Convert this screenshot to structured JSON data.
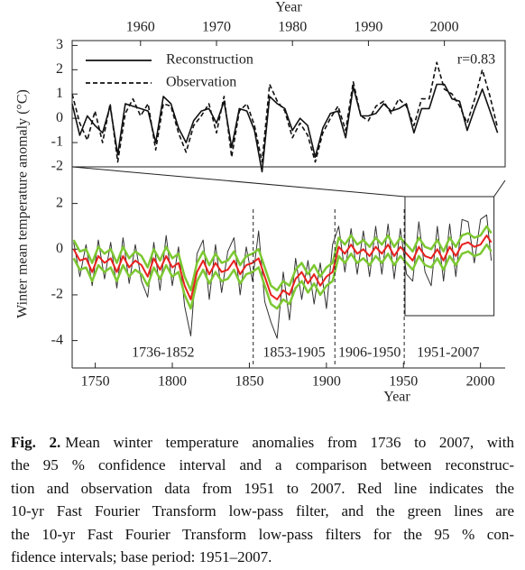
{
  "chart_data": [
    {
      "type": "line",
      "x_label": "Year",
      "y_label": "Winter mean temperature anomaly (°C)",
      "annotation": "r=0.83",
      "legend": "upper left",
      "x": [
        1951,
        1952,
        1953,
        1954,
        1955,
        1956,
        1957,
        1958,
        1959,
        1960,
        1961,
        1962,
        1963,
        1964,
        1965,
        1966,
        1967,
        1968,
        1969,
        1970,
        1971,
        1972,
        1973,
        1974,
        1975,
        1976,
        1977,
        1978,
        1979,
        1980,
        1981,
        1982,
        1983,
        1984,
        1985,
        1986,
        1987,
        1988,
        1989,
        1990,
        1991,
        1992,
        1993,
        1994,
        1995,
        1996,
        1997,
        1998,
        1999,
        2000,
        2001,
        2002,
        2003,
        2004,
        2005,
        2006,
        2007
      ],
      "xlim": [
        1951,
        2008
      ],
      "xticks": [
        1960,
        1970,
        1980,
        1990,
        2000
      ],
      "ylim": [
        -2,
        3.2
      ],
      "yticks": [
        3,
        2,
        1,
        0,
        -1,
        -2
      ],
      "series": [
        {
          "name": "Reconstruction",
          "color": "#111111",
          "line_style": "solid",
          "values": [
            0.6,
            -0.7,
            0.1,
            -0.3,
            -0.6,
            0.5,
            -1.5,
            0.6,
            0.5,
            0.4,
            0.3,
            -1.0,
            0.9,
            0.6,
            -0.4,
            -1.0,
            -0.1,
            0.3,
            0.4,
            -0.2,
            0.7,
            -1.2,
            0.4,
            0.3,
            -0.5,
            -2.2,
            0.9,
            0.6,
            0.4,
            -0.5,
            0.0,
            -0.3,
            -1.6,
            -0.4,
            0.2,
            0.3,
            -0.8,
            1.3,
            0.1,
            0.1,
            0.2,
            0.6,
            0.3,
            0.4,
            0.6,
            -0.6,
            0.4,
            0.4,
            1.4,
            1.4,
            0.8,
            0.7,
            -0.5,
            0.4,
            1.2,
            0.3,
            -0.6
          ]
        },
        {
          "name": "Observation",
          "color": "#111111",
          "line_style": "dashed",
          "values": [
            1.0,
            -0.2,
            -0.9,
            0.3,
            -1.0,
            0.6,
            -1.8,
            0.2,
            0.8,
            0.1,
            0.6,
            -1.3,
            0.6,
            0.5,
            -0.6,
            -1.4,
            -0.3,
            0.1,
            0.6,
            -0.6,
            0.9,
            -1.6,
            0.3,
            0.6,
            -0.3,
            -1.8,
            1.4,
            0.7,
            0.3,
            -0.8,
            -0.2,
            -0.7,
            -1.8,
            -0.6,
            0.0,
            0.5,
            -0.5,
            1.5,
            0.1,
            -0.1,
            0.5,
            0.7,
            0.2,
            0.8,
            0.5,
            -0.3,
            0.8,
            0.8,
            2.3,
            1.2,
            1.0,
            0.5,
            -0.2,
            0.8,
            2.0,
            0.9,
            -0.4
          ]
        }
      ]
    },
    {
      "type": "line",
      "x_label": "Year",
      "x": [
        1736,
        1740,
        1744,
        1748,
        1752,
        1756,
        1760,
        1764,
        1768,
        1772,
        1776,
        1780,
        1784,
        1788,
        1792,
        1796,
        1800,
        1804,
        1808,
        1812,
        1816,
        1820,
        1824,
        1828,
        1832,
        1836,
        1840,
        1844,
        1848,
        1852,
        1856,
        1860,
        1864,
        1868,
        1872,
        1876,
        1880,
        1884,
        1888,
        1892,
        1896,
        1900,
        1904,
        1908,
        1912,
        1916,
        1920,
        1924,
        1928,
        1932,
        1936,
        1940,
        1944,
        1948,
        1952,
        1956,
        1960,
        1964,
        1968,
        1972,
        1976,
        1980,
        1984,
        1988,
        1992,
        1996,
        2000,
        2004,
        2007
      ],
      "xlim": [
        1735,
        2016
      ],
      "xticks": [
        1750,
        1800,
        1850,
        1900,
        1950,
        2000
      ],
      "ylim": [
        -5.2,
        2.3
      ],
      "yticks": [
        2,
        0,
        -2,
        -4
      ],
      "periods": [
        {
          "label": "1736-1852",
          "start": 1736,
          "end": 1852
        },
        {
          "label": "1853-1905",
          "start": 1853,
          "end": 1905
        },
        {
          "label": "1906-1950",
          "start": 1906,
          "end": 1950
        },
        {
          "label": "1951-2007",
          "start": 1951,
          "end": 2007
        }
      ],
      "series": [
        {
          "color": "#333333",
          "line_style": "solid",
          "width": 1,
          "values": [
            0.3,
            -1.2,
            0.2,
            -1.6,
            0.4,
            -1.3,
            0.3,
            -1.7,
            0.5,
            -1.5,
            0.2,
            -1.4,
            -2.1,
            0.3,
            -1.8,
            0.6,
            -1.6,
            0.1,
            -2.5,
            -3.8,
            -0.2,
            0.4,
            -2.2,
            0.2,
            -1.9,
            -0.1,
            0.5,
            -2.0,
            0.1,
            -1.4,
            0.8,
            -2.3,
            -3.2,
            -3.9,
            -1.0,
            -3.1,
            -0.4,
            -2.2,
            -0.5,
            -2.4,
            -0.6,
            -2.6,
            0.2,
            1.0,
            -1.0,
            0.9,
            -1.1,
            0.8,
            -1.2,
            1.0,
            -1.1,
            1.1,
            -1.3,
            0.9,
            -1.1,
            -1.4,
            1.2,
            -1.0,
            -1.6,
            1.0,
            -1.4,
            1.1,
            -1.2,
            1.3,
            1.2,
            -0.6,
            1.3,
            1.5,
            -0.5
          ]
        },
        {
          "color": "#7dc832",
          "line_style": "solid",
          "width": 2.5,
          "values": [
            0.4,
            -0.1,
            0,
            -0.6,
            0.1,
            -0.2,
            0,
            -0.6,
            0.1,
            -0.4,
            -0.1,
            -0.3,
            -0.8,
            0,
            -0.5,
            0.1,
            -0.4,
            -0.2,
            -1.2,
            -1.8,
            -0.6,
            -0.1,
            -0.7,
            -0.2,
            -0.6,
            -0.5,
            -0.1,
            -0.7,
            -0.3,
            -0.2,
            0,
            -0.8,
            -1.6,
            -1.8,
            -1.4,
            -1.6,
            -0.9,
            -0.6,
            -1.1,
            -0.7,
            -1.2,
            -0.8,
            -0.6,
            0.5,
            0.2,
            0.6,
            0.2,
            0.4,
            0.1,
            0.5,
            0.2,
            0.6,
            0.1,
            0.5,
            0.2,
            -0.1,
            0.5,
            0.1,
            0,
            0.4,
            -0.1,
            0.5,
            0.1,
            0.6,
            0.7,
            0.5,
            0.6,
            1.0,
            0.7
          ]
        },
        {
          "color": "#7dc832",
          "line_style": "solid",
          "width": 2.5,
          "values": [
            -0.4,
            -0.9,
            -0.8,
            -1.4,
            -0.7,
            -1.0,
            -0.8,
            -1.4,
            -0.7,
            -1.2,
            -0.9,
            -1.1,
            -1.6,
            -0.8,
            -1.3,
            -0.7,
            -1.2,
            -1.0,
            -2.0,
            -2.6,
            -1.4,
            -0.9,
            -1.5,
            -1.0,
            -1.4,
            -1.3,
            -0.9,
            -1.5,
            -1.1,
            -1.0,
            -0.8,
            -1.6,
            -2.4,
            -2.6,
            -2.2,
            -2.4,
            -1.7,
            -1.4,
            -1.9,
            -1.5,
            -2.0,
            -1.6,
            -1.4,
            -0.3,
            -0.6,
            -0.2,
            -0.6,
            -0.4,
            -0.7,
            -0.3,
            -0.6,
            -0.2,
            -0.7,
            -0.3,
            -0.6,
            -0.9,
            -0.3,
            -0.7,
            -0.8,
            -0.4,
            -0.9,
            -0.3,
            -0.7,
            -0.2,
            -0.1,
            -0.3,
            -0.2,
            0.2,
            -0.1
          ]
        },
        {
          "color": "#e8211d",
          "line_style": "solid",
          "width": 2,
          "values": [
            0,
            -0.5,
            -0.4,
            -1.0,
            -0.3,
            -0.6,
            -0.4,
            -1.0,
            -0.3,
            -0.8,
            -0.5,
            -0.7,
            -1.2,
            -0.4,
            -0.9,
            -0.3,
            -0.8,
            -0.6,
            -1.6,
            -2.2,
            -1.0,
            -0.5,
            -1.1,
            -0.6,
            -1.0,
            -0.9,
            -0.5,
            -1.1,
            -0.7,
            -0.6,
            -0.4,
            -1.2,
            -2.0,
            -2.2,
            -1.8,
            -2.0,
            -1.3,
            -1.0,
            -1.5,
            -1.1,
            -1.6,
            -1.2,
            -1.0,
            0.1,
            -0.2,
            0.2,
            -0.2,
            0.0,
            -0.3,
            0.1,
            -0.2,
            0.2,
            -0.3,
            0.1,
            -0.2,
            -0.5,
            0.1,
            -0.3,
            -0.4,
            0.0,
            -0.5,
            0.1,
            -0.3,
            0.2,
            0.3,
            0.1,
            0.2,
            0.6,
            0.3
          ]
        }
      ]
    }
  ],
  "caption": {
    "label": "Fig. 2.",
    "lines": [
      "Mean winter temperature anomalies from 1736 to 2007, with",
      "the 95 % confidence interval and a comparison between reconstruc-",
      "tion and observation data from 1951 to 2007. Red line indicates the",
      "10-yr Fast Fourier Transform low-pass filter, and the green lines are",
      "the 10-yr Fast Fourier Transform low-pass filters for the 95 % con-",
      "fidence intervals; base period: 1951–2007."
    ]
  }
}
